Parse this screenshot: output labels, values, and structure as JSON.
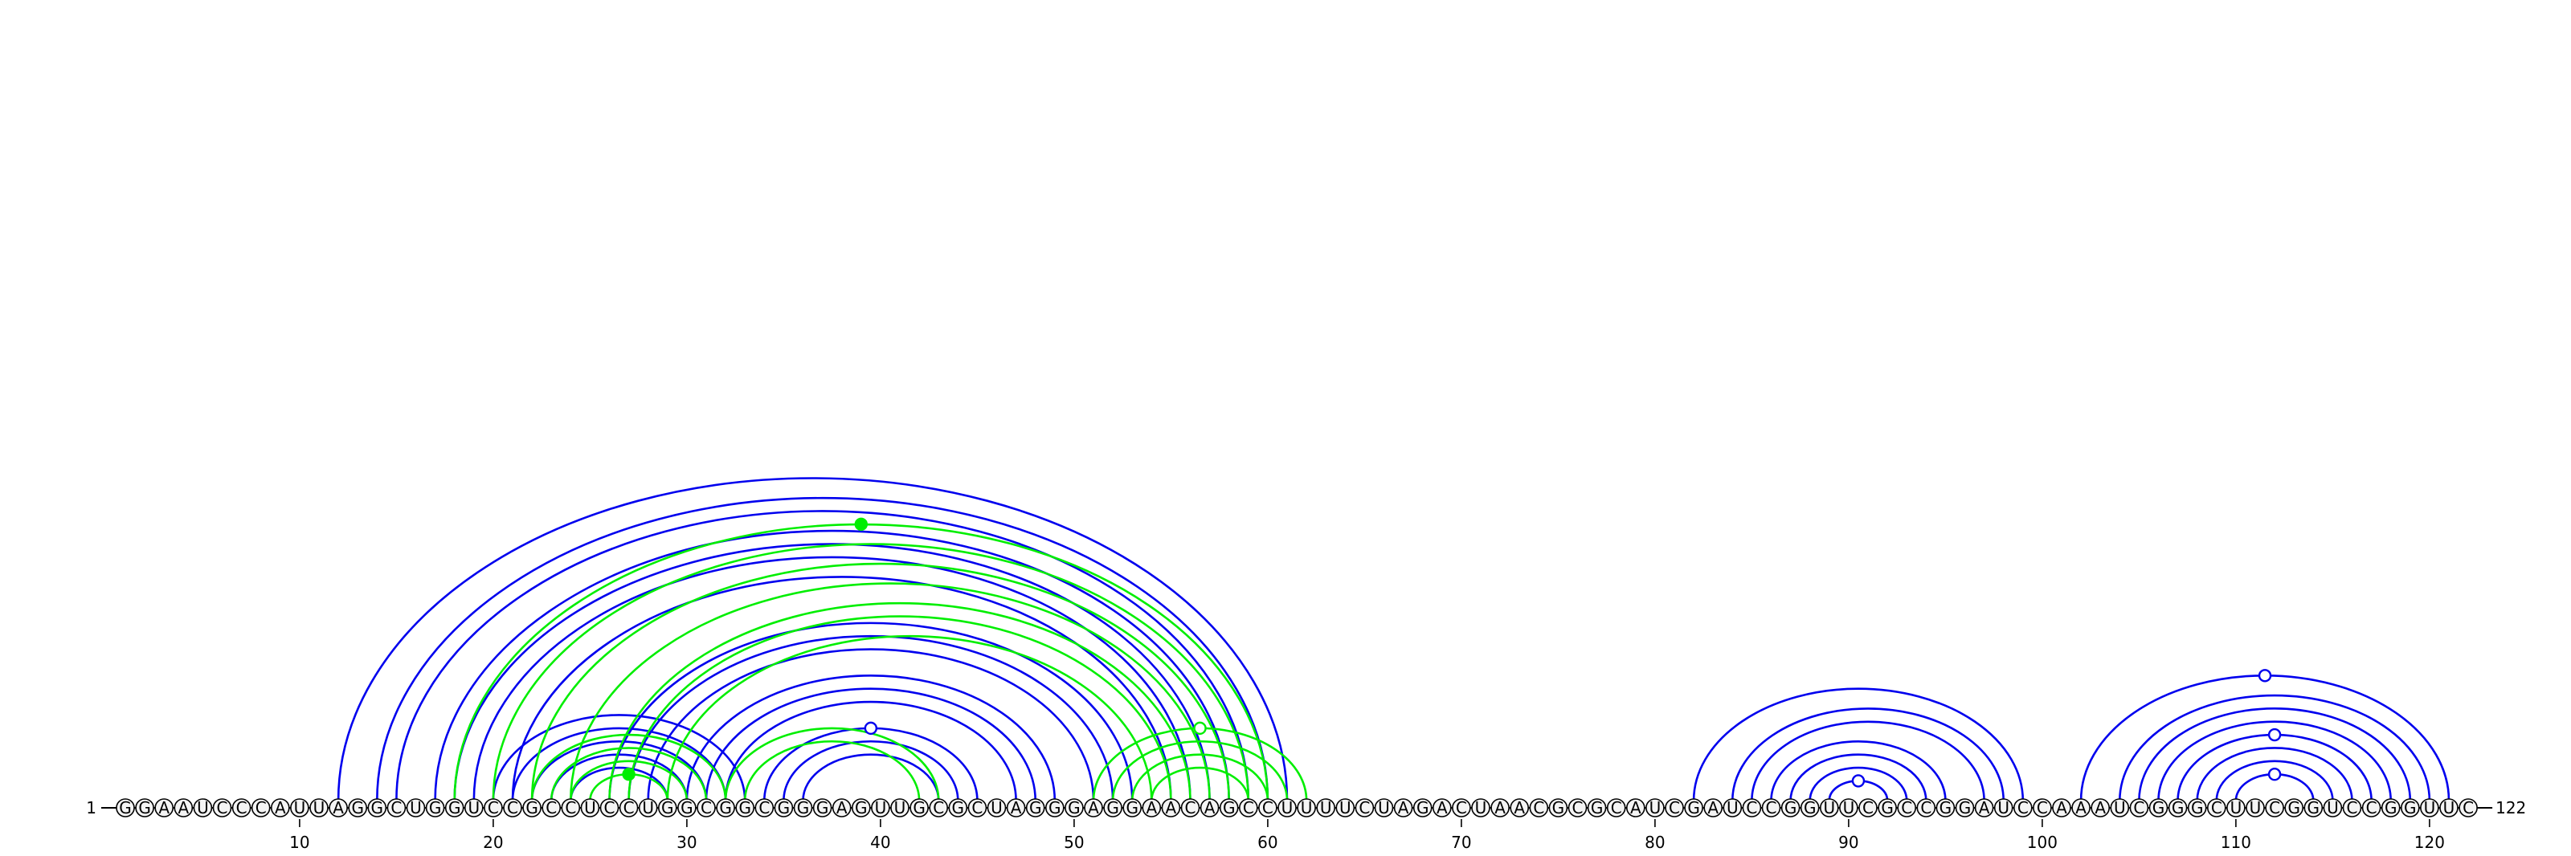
{
  "sequence": "GGAAUCCCAUUAGGCUGGUCCGCCUCCUGGCGGCGGGAGUUGCGCUAGGGAGGAACAGCCUUUUCUAGACUAACGCGCAUCGAUCCGGUUCGCCGGAUCCAAAUCGGGCUUCGGUCCGGUUC",
  "length": 122,
  "start_label": "1",
  "end_label": "122",
  "ticks": [
    "10",
    "20",
    "30",
    "40",
    "50",
    "60",
    "70",
    "80",
    "90",
    "100",
    "110",
    "120"
  ],
  "colors": {
    "structure_a": "#0000ee",
    "structure_b": "#00ee00",
    "backbone": "#000000"
  },
  "arcs": {
    "structure_a": [
      [
        12,
        61
      ],
      [
        14,
        60
      ],
      [
        15,
        59
      ],
      [
        17,
        58
      ],
      [
        18,
        57
      ],
      [
        19,
        56
      ],
      [
        21,
        55
      ],
      [
        26,
        53
      ],
      [
        27,
        52
      ],
      [
        28,
        51
      ],
      [
        30,
        49
      ],
      [
        31,
        48
      ],
      [
        32,
        47
      ],
      [
        34,
        45
      ],
      [
        35,
        44
      ],
      [
        36,
        43
      ],
      [
        20,
        33
      ],
      [
        21,
        32
      ],
      [
        22,
        31
      ],
      [
        23,
        30
      ],
      [
        24,
        29
      ],
      [
        82,
        99
      ],
      [
        84,
        98
      ],
      [
        85,
        97
      ],
      [
        86,
        95
      ],
      [
        87,
        94
      ],
      [
        88,
        93
      ],
      [
        89,
        92
      ],
      [
        102,
        121
      ],
      [
        104,
        120
      ],
      [
        105,
        119
      ],
      [
        106,
        118
      ],
      [
        107,
        117
      ],
      [
        108,
        116
      ],
      [
        109,
        115
      ],
      [
        110,
        114
      ]
    ],
    "structure_b": [
      [
        18,
        60
      ],
      [
        20,
        59
      ],
      [
        22,
        58
      ],
      [
        24,
        57
      ],
      [
        26,
        56
      ],
      [
        27,
        55
      ],
      [
        29,
        54
      ],
      [
        32,
        43
      ],
      [
        33,
        42
      ],
      [
        22,
        32
      ],
      [
        23,
        31
      ],
      [
        24,
        30
      ],
      [
        25,
        29
      ],
      [
        51,
        62
      ],
      [
        52,
        61
      ],
      [
        53,
        60
      ],
      [
        54,
        59
      ]
    ]
  }
}
